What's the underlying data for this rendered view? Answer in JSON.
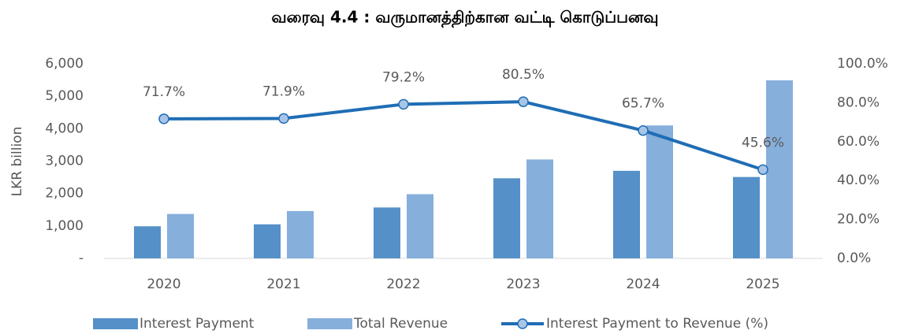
{
  "chart_data": {
    "type": "bar",
    "title": "வரைவு 4.4 : வருமானத்திற்கான வட்டி கொடுப்பனவு",
    "y_label": "LKR billion",
    "categories": [
      "2020",
      "2021",
      "2022",
      "2023",
      "2024",
      "2025"
    ],
    "series": [
      {
        "name": "Interest Payment",
        "type": "bar",
        "color": "#5590c8",
        "values": [
          990,
          1050,
          1570,
          2470,
          2700,
          2510
        ]
      },
      {
        "name": "Total Revenue",
        "type": "bar",
        "color": "#86afdc",
        "values": [
          1370,
          1460,
          1980,
          3050,
          4100,
          5490
        ]
      },
      {
        "name": "Interest Payment to Revenue (%)",
        "type": "line",
        "axis": "y2",
        "color": "#1f6db5",
        "marker_color": "#a9c5e6",
        "values": [
          71.7,
          71.9,
          79.2,
          80.5,
          65.7,
          45.6
        ],
        "value_labels": [
          "71.7%",
          "71.9%",
          "79.2%",
          "80.5%",
          "65.7%",
          "45.6%"
        ]
      }
    ],
    "ylim": [
      0,
      6000
    ],
    "yticks": [
      {
        "value": 0,
        "label": "-"
      },
      {
        "value": 1000,
        "label": "1,000"
      },
      {
        "value": 2000,
        "label": "2,000"
      },
      {
        "value": 3000,
        "label": "3,000"
      },
      {
        "value": 4000,
        "label": "4,000"
      },
      {
        "value": 5000,
        "label": "5,000"
      },
      {
        "value": 6000,
        "label": "6,000"
      }
    ],
    "y2lim": [
      0,
      100
    ],
    "y2ticks": [
      {
        "value": 0,
        "label": "0.0%"
      },
      {
        "value": 20,
        "label": "20.0%"
      },
      {
        "value": 40,
        "label": "40.0%"
      },
      {
        "value": 60,
        "label": "60.0%"
      },
      {
        "value": 80,
        "label": "80.0%"
      },
      {
        "value": 100,
        "label": "100.0%"
      }
    ],
    "grid": false,
    "legend": "bottom"
  }
}
